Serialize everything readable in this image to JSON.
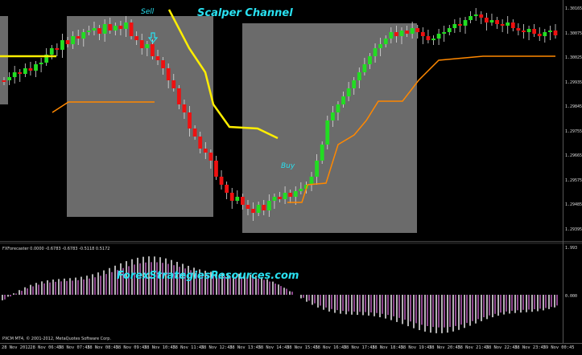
{
  "chart": {
    "title": "Scalper Channel",
    "sell_label": "Sell",
    "buy_label": "Buy",
    "watermark": "ForexStrategiesResources.com",
    "indicator_title": "FXForecaster 0.0000 -0.6783 -0.6783 -0.5118 0.5172",
    "copyright": "PXCM MT4, © 2001-2012, MetaQuotes Software Corp.",
    "price_labels": [
      "1.30165",
      "1.30075",
      "1.30025",
      "1.29935",
      "1.29845",
      "1.29755",
      "1.29665",
      "1.29575",
      "1.29485",
      "1.29395"
    ],
    "osc_labels": [
      "1.993",
      "0.000"
    ],
    "time_labels": [
      "28 Nov 2012",
      "28 Nov 06:45",
      "28 Nov 07:45",
      "28 Nov 08:45",
      "28 Nov 09:45",
      "28 Nov 10:45",
      "28 Nov 11:45",
      "28 Nov 12:45",
      "28 Nov 13:45",
      "28 Nov 14:45",
      "28 Nov 15:45",
      "28 Nov 16:45",
      "28 Nov 17:45",
      "28 Nov 18:45",
      "28 Nov 19:45",
      "28 Nov 20:45",
      "28 Nov 21:45",
      "28 Nov 22:45",
      "28 Nov 23:45",
      "29 Nov 00:45"
    ],
    "colors": {
      "bull": "#22dd22",
      "bear": "#ee1111",
      "channel_yellow": "#ffee00",
      "channel_orange": "#ff8800",
      "zone": "#777777",
      "osc_white": "#ffffff",
      "osc_pink": "#cc66cc",
      "accent": "#29e0f0"
    }
  }
}
